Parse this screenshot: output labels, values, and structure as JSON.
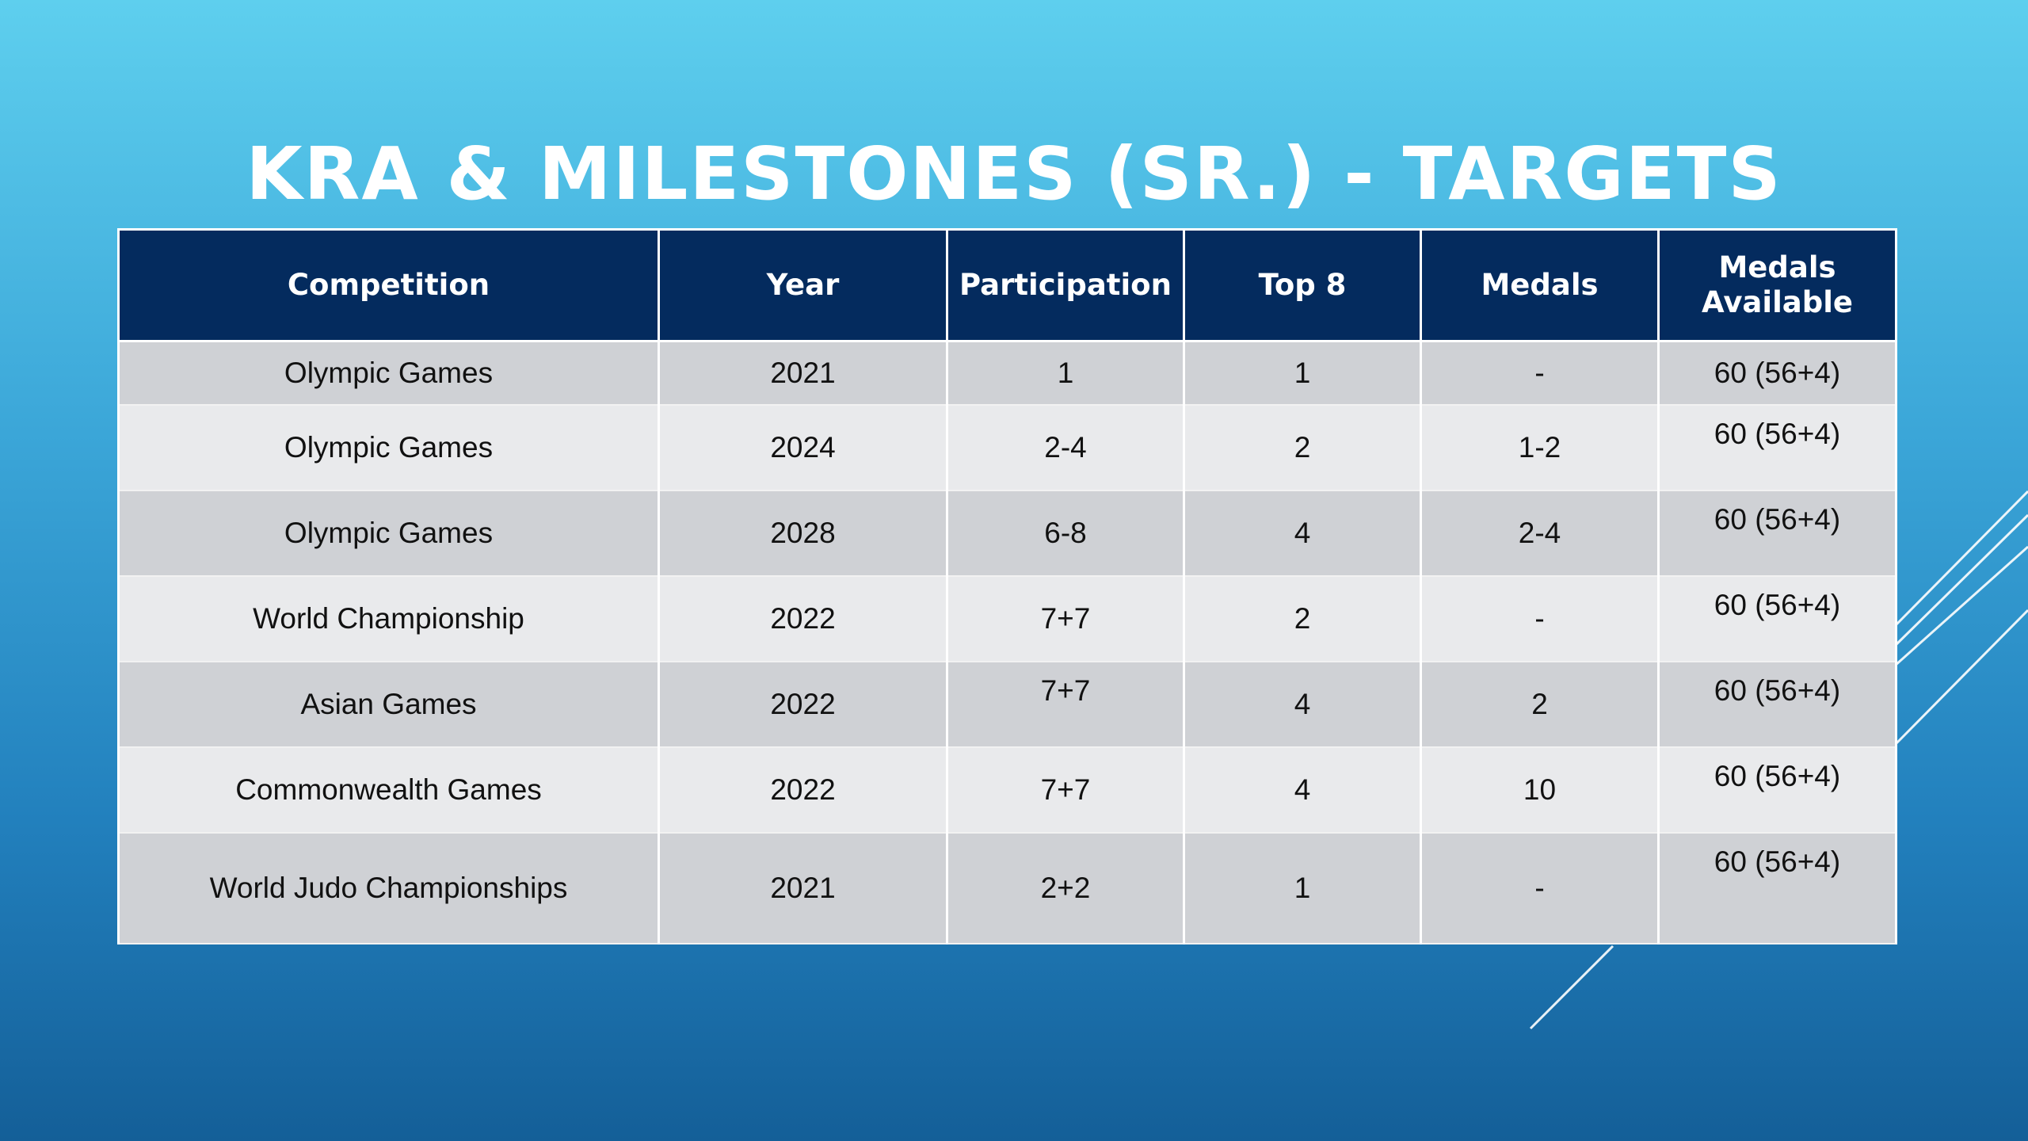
{
  "title": "KRA & MILESTONES (SR.) - TARGETS",
  "colors": {
    "header_bg": "#042b5e",
    "row_dark": "#cfd1d5",
    "row_light": "#e9eaec",
    "background_top": "#5ecfee",
    "background_bottom": "#145f98"
  },
  "table": {
    "headers": [
      "Competition",
      "Year",
      "Participation",
      "Top 8",
      "Medals",
      "Medals Available"
    ],
    "rows": [
      [
        "Olympic Games",
        "2021",
        "1",
        "1",
        "-",
        "60 (56+4)"
      ],
      [
        "Olympic Games",
        "2024",
        "2-4",
        "2",
        "1-2",
        "60 (56+4)"
      ],
      [
        "Olympic Games",
        "2028",
        "6-8",
        "4",
        "2-4",
        "60 (56+4)"
      ],
      [
        "World Championship",
        "2022",
        "7+7",
        "2",
        "-",
        "60 (56+4)"
      ],
      [
        "Asian Games",
        "2022",
        "7+7",
        "4",
        "2",
        "60 (56+4)"
      ],
      [
        "Commonwealth Games",
        "2022",
        "7+7",
        "4",
        "10",
        "60 (56+4)"
      ],
      [
        "World Judo Championships",
        "2021",
        "2+2",
        "1",
        "-",
        "60 (56+4)"
      ]
    ]
  }
}
